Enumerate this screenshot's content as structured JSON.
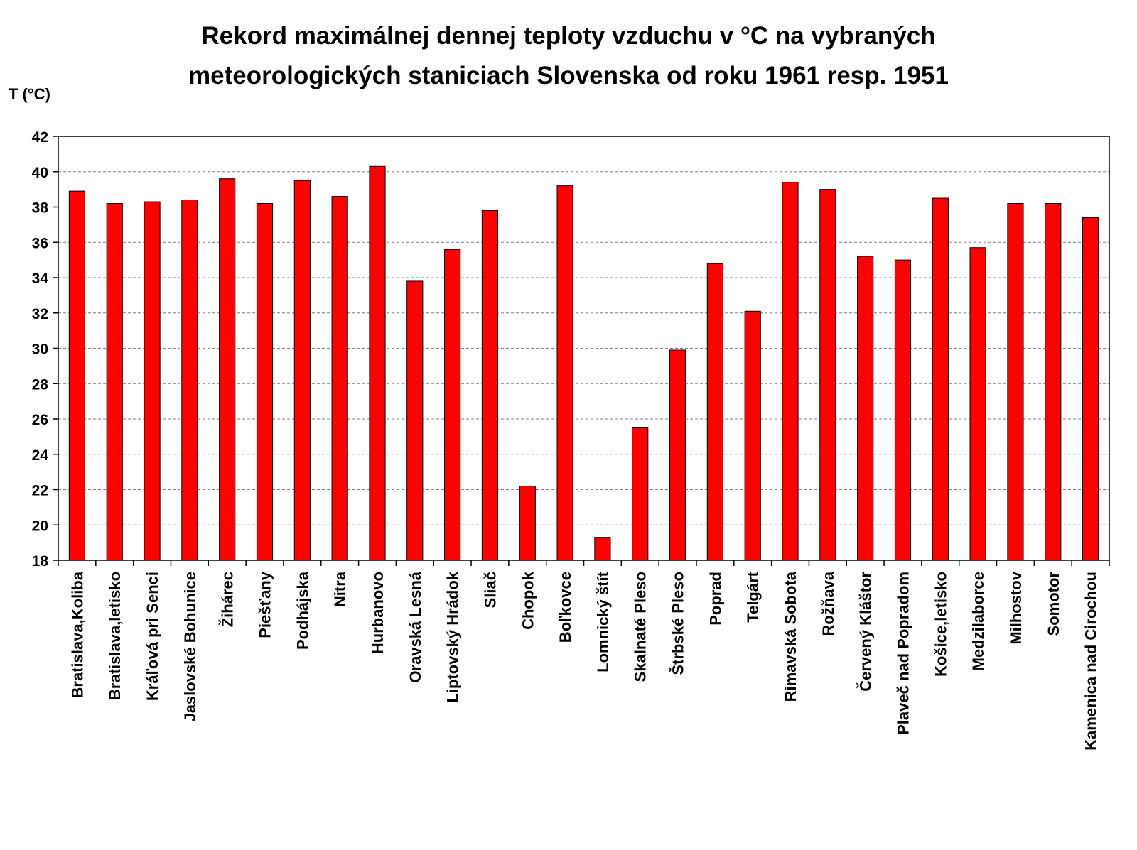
{
  "chart_data": {
    "type": "bar",
    "title_lines": [
      "Rekord maximálnej dennej teploty vzduchu v °C na vybraných",
      "meteorologických staniciach Slovenska od roku 1961 resp. 1951"
    ],
    "ylabel": "T (°C)",
    "xlabel": "",
    "ylim": [
      18,
      42
    ],
    "yticks": [
      18,
      20,
      22,
      24,
      26,
      28,
      30,
      32,
      34,
      36,
      38,
      40,
      42
    ],
    "grid": true,
    "legend": "none",
    "bar_color": "#ff0000",
    "categories": [
      "Bratislava,Koliba",
      "Bratislava,letisko",
      "Kráľová pri Senci",
      "Jaslovské Bohunice",
      "Žihárec",
      "Piešťany",
      "Podhájska",
      "Nitra",
      "Hurbanovo",
      "Oravská Lesná",
      "Liptovský Hrádok",
      "Sliač",
      "Chopok",
      "Boľkovce",
      "Lomnický štít",
      "Skalnaté Pleso",
      "Štrbské Pleso",
      "Poprad",
      "Telgárt",
      "Rimavská Sobota",
      "Rožňava",
      "Červený Kláštor",
      "Plaveč nad Popradom",
      "Košice,letisko",
      "Medzilaborce",
      "Milhostov",
      "Somotor",
      "Kamenica nad Cirochou"
    ],
    "values": [
      38.9,
      38.2,
      38.3,
      38.4,
      39.6,
      38.2,
      39.5,
      38.6,
      40.3,
      33.8,
      35.6,
      37.8,
      22.2,
      39.2,
      19.3,
      25.5,
      29.9,
      34.8,
      32.1,
      39.4,
      39.0,
      35.2,
      35.0,
      38.5,
      35.7,
      38.2,
      38.2,
      37.4
    ]
  }
}
